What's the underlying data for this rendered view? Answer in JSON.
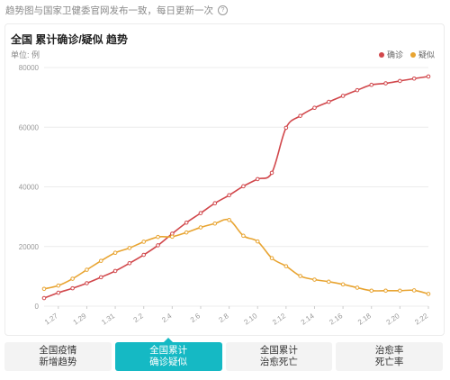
{
  "header_note": "趋势图与国家卫健委官网发布一致，每日更新一次",
  "tabs": [
    {
      "line1": "全国疫情",
      "line2": "新增趋势"
    },
    {
      "line1": "全国累计",
      "line2": "确诊疑似"
    },
    {
      "line1": "全国累计",
      "line2": "治愈死亡"
    },
    {
      "line1": "治愈率",
      "line2": "死亡率"
    }
  ],
  "colors": {
    "confirmed": "#d1474b",
    "suspected": "#e8a431",
    "grid": "#ececec",
    "active_tab": "#15b9c4"
  },
  "chart_data": {
    "type": "line",
    "title": "全国 累计确诊/疑似 趋势",
    "unit_label": "单位: 例",
    "legend_position": "top-right",
    "grid": true,
    "ylim": [
      0,
      80000
    ],
    "y_ticks": [
      0,
      20000,
      40000,
      60000,
      80000
    ],
    "x": [
      "1.26",
      "1.27",
      "1.28",
      "1.29",
      "1.30",
      "1.31",
      "2.1",
      "2.2",
      "2.3",
      "2.4",
      "2.5",
      "2.6",
      "2.7",
      "2.8",
      "2.9",
      "2.10",
      "2.11",
      "2.12",
      "2.13",
      "2.14",
      "2.15",
      "2.16",
      "2.17",
      "2.18",
      "2.19",
      "2.20",
      "2.21",
      "2.22"
    ],
    "x_tick_labels": [
      "1.27",
      "1.29",
      "1.31",
      "2.2",
      "2.4",
      "2.6",
      "2.8",
      "2.10",
      "2.12",
      "2.14",
      "2.16",
      "2.18",
      "2.20",
      "2.22"
    ],
    "series": [
      {
        "name": "确诊",
        "values": [
          2700,
          4500,
          6000,
          7700,
          9700,
          11800,
          14400,
          17200,
          20400,
          24300,
          28000,
          31200,
          34500,
          37200,
          40200,
          42600,
          44700,
          59800,
          63800,
          66500,
          68500,
          70500,
          72400,
          74200,
          74700,
          75500,
          76300,
          77000
        ]
      },
      {
        "name": "疑似",
        "values": [
          5800,
          6900,
          9200,
          12200,
          15200,
          17900,
          19500,
          21600,
          23200,
          23300,
          24700,
          26400,
          27700,
          28900,
          23600,
          21700,
          16100,
          13400,
          10100,
          8900,
          8200,
          7300,
          6200,
          5200,
          5200,
          5200,
          5300,
          4100
        ]
      }
    ]
  }
}
